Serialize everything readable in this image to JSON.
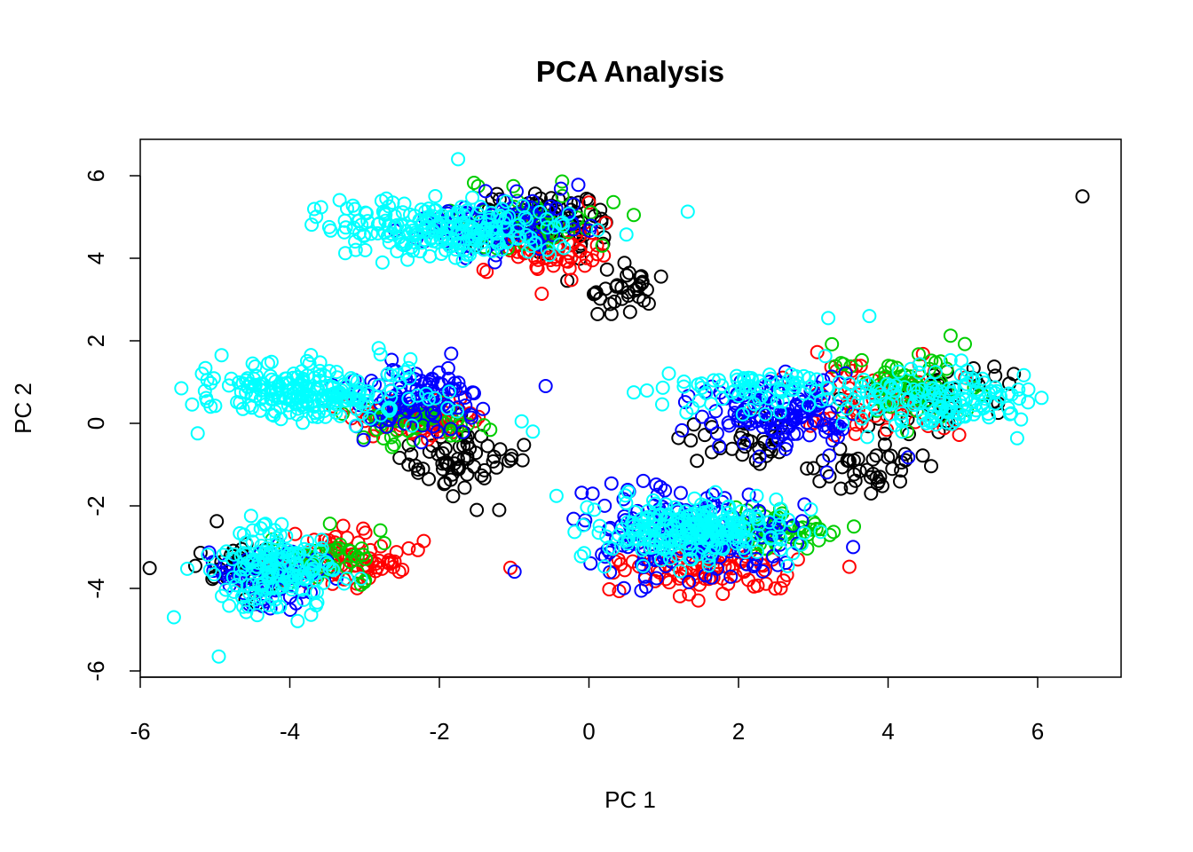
{
  "chart_data": {
    "type": "scatter",
    "title": "PCA Analysis",
    "xlabel": "PC 1",
    "ylabel": "PC 2",
    "xlim": [
      -6,
      7
    ],
    "ylim": [
      -6,
      6.5
    ],
    "xticks": [
      "-6",
      "-4",
      "-2",
      "0",
      "2",
      "4",
      "6"
    ],
    "yticks": [
      "-6",
      "-4",
      "-2",
      "0",
      "2",
      "4",
      "6"
    ],
    "marker": "open-circle",
    "legend": "none",
    "grid": false,
    "series": [
      {
        "name": "group-black",
        "color": "#000000",
        "clusters": [
          {
            "cx": -0.6,
            "cy": 4.9,
            "sx": 0.6,
            "sy": 0.5,
            "n": 90
          },
          {
            "cx": 0.4,
            "cy": 3.3,
            "sx": 0.35,
            "sy": 0.35,
            "n": 30
          },
          {
            "cx": -1.8,
            "cy": -0.9,
            "sx": 0.5,
            "sy": 0.5,
            "n": 60
          },
          {
            "cx": -4.5,
            "cy": -3.5,
            "sx": 0.5,
            "sy": 0.45,
            "n": 50
          },
          {
            "cx": 3.8,
            "cy": -1.0,
            "sx": 0.5,
            "sy": 0.4,
            "n": 40
          },
          {
            "cx": 4.6,
            "cy": 0.7,
            "sx": 0.7,
            "sy": 0.5,
            "n": 50
          },
          {
            "cx": 2.2,
            "cy": -0.5,
            "sx": 0.5,
            "sy": 0.4,
            "n": 30
          }
        ],
        "points": [
          [
            6.6,
            5.5
          ],
          [
            -1.2,
            -2.1
          ],
          [
            -1.5,
            -2.1
          ],
          [
            0.3,
            2.65
          ],
          [
            0.55,
            2.7
          ],
          [
            0.8,
            2.9
          ]
        ]
      },
      {
        "name": "group-red",
        "color": "#ff0000",
        "clusters": [
          {
            "cx": -0.5,
            "cy": 4.2,
            "sx": 0.5,
            "sy": 0.45,
            "n": 60
          },
          {
            "cx": -2.4,
            "cy": 0.1,
            "sx": 0.6,
            "sy": 0.35,
            "n": 70
          },
          {
            "cx": -3.3,
            "cy": -3.4,
            "sx": 0.6,
            "sy": 0.45,
            "n": 80
          },
          {
            "cx": 1.6,
            "cy": -3.5,
            "sx": 0.8,
            "sy": 0.5,
            "n": 90
          },
          {
            "cx": 3.8,
            "cy": 0.6,
            "sx": 0.8,
            "sy": 0.6,
            "n": 60
          }
        ],
        "points": [
          [
            -1.05,
            -3.5
          ]
        ]
      },
      {
        "name": "group-green",
        "color": "#00cd00",
        "clusters": [
          {
            "cx": -0.8,
            "cy": 4.9,
            "sx": 0.6,
            "sy": 0.45,
            "n": 60
          },
          {
            "cx": -2.3,
            "cy": 0.0,
            "sx": 0.5,
            "sy": 0.3,
            "n": 50
          },
          {
            "cx": -3.5,
            "cy": -3.3,
            "sx": 0.6,
            "sy": 0.45,
            "n": 50
          },
          {
            "cx": 2.6,
            "cy": -2.6,
            "sx": 0.5,
            "sy": 0.5,
            "n": 50
          },
          {
            "cx": 4.3,
            "cy": 0.9,
            "sx": 0.7,
            "sy": 0.55,
            "n": 70
          }
        ],
        "points": [
          [
            0.6,
            5.05
          ]
        ]
      },
      {
        "name": "group-blue",
        "color": "#0000ff",
        "clusters": [
          {
            "cx": -1.2,
            "cy": 4.8,
            "sx": 0.7,
            "sy": 0.45,
            "n": 110
          },
          {
            "cx": -2.3,
            "cy": 0.6,
            "sx": 0.6,
            "sy": 0.5,
            "n": 110
          },
          {
            "cx": -4.3,
            "cy": -3.7,
            "sx": 0.6,
            "sy": 0.5,
            "n": 70
          },
          {
            "cx": 1.3,
            "cy": -2.7,
            "sx": 0.9,
            "sy": 0.7,
            "n": 200
          },
          {
            "cx": 2.6,
            "cy": 0.2,
            "sx": 0.7,
            "sy": 0.6,
            "n": 130
          }
        ],
        "points": []
      },
      {
        "name": "group-cyan",
        "color": "#00ffff",
        "clusters": [
          {
            "cx": -1.8,
            "cy": 4.7,
            "sx": 1.1,
            "sy": 0.45,
            "n": 220
          },
          {
            "cx": -3.7,
            "cy": 0.8,
            "sx": 0.9,
            "sy": 0.5,
            "n": 220
          },
          {
            "cx": -4.2,
            "cy": -3.6,
            "sx": 0.55,
            "sy": 0.6,
            "n": 170
          },
          {
            "cx": 1.3,
            "cy": -2.6,
            "sx": 0.85,
            "sy": 0.45,
            "n": 240
          },
          {
            "cx": 2.0,
            "cy": 0.9,
            "sx": 0.8,
            "sy": 0.4,
            "n": 70
          },
          {
            "cx": 4.6,
            "cy": 0.6,
            "sx": 0.9,
            "sy": 0.5,
            "n": 150
          }
        ],
        "points": [
          [
            -1.75,
            6.4
          ],
          [
            -4.95,
            -5.65
          ],
          [
            -5.45,
            0.85
          ],
          [
            -5.55,
            -4.7
          ],
          [
            -0.9,
            0.05
          ],
          [
            -0.75,
            -0.2
          ],
          [
            0.6,
            0.75
          ],
          [
            3.2,
            2.55
          ],
          [
            3.75,
            2.6
          ]
        ]
      }
    ]
  }
}
